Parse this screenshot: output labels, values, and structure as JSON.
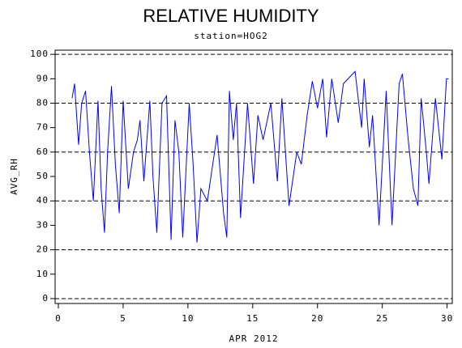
{
  "chart_data": {
    "type": "line",
    "title": "RELATIVE HUMIDITY",
    "subtitle": "station=HOG2",
    "ylabel": "AVG_RH",
    "xlabel": "APR 2012",
    "x": [
      1.06,
      1.25,
      1.56,
      1.8,
      2.1,
      2.4,
      2.7,
      3.06,
      3.3,
      3.56,
      3.8,
      4.1,
      4.4,
      4.7,
      5.0,
      5.4,
      5.8,
      6.1,
      6.3,
      6.6,
      7.06,
      7.3,
      7.6,
      8.0,
      8.35,
      8.7,
      9.0,
      9.3,
      9.6,
      10.1,
      10.4,
      10.7,
      11.0,
      11.5,
      12.25,
      12.75,
      13.0,
      13.2,
      13.5,
      13.75,
      14.06,
      14.6,
      15.06,
      15.4,
      15.8,
      16.4,
      16.9,
      17.25,
      17.8,
      18.4,
      18.75,
      19.2,
      19.6,
      20.0,
      20.4,
      20.7,
      21.1,
      21.6,
      22.0,
      22.9,
      23.4,
      23.6,
      24.0,
      24.25,
      24.75,
      25.3,
      25.75,
      26.3,
      26.55,
      27.0,
      27.4,
      27.75,
      28.0,
      28.4,
      28.6,
      29.1,
      29.6,
      29.95,
      30.1
    ],
    "series": [
      {
        "name": "AVG_RH",
        "color": "#0000ff",
        "values": [
          82,
          88,
          63,
          80,
          85,
          60,
          40,
          81,
          45,
          27,
          60,
          87,
          55,
          35,
          81,
          45,
          60,
          65,
          73,
          48,
          81,
          50,
          27,
          80,
          83,
          24,
          73,
          60,
          25,
          80,
          55,
          23,
          45,
          40,
          67,
          35,
          25,
          85,
          65,
          80,
          33,
          80,
          47,
          75,
          65,
          80,
          48,
          82,
          38,
          60,
          55,
          75,
          89,
          78,
          90,
          66,
          90,
          72,
          88,
          93,
          70,
          90,
          62,
          75,
          30,
          85,
          30,
          88,
          92,
          65,
          45,
          38,
          82,
          60,
          47,
          82,
          57,
          90,
          90
        ]
      }
    ],
    "xlim": [
      -0.25,
      30.4
    ],
    "ylim": [
      -2,
      101.7
    ],
    "xticks": [
      0,
      5,
      10,
      15,
      20,
      25,
      30
    ],
    "yticks": [
      0,
      10,
      20,
      30,
      40,
      50,
      60,
      70,
      80,
      90,
      100
    ],
    "ygrid": [
      0,
      20,
      40,
      60,
      80,
      100
    ]
  }
}
